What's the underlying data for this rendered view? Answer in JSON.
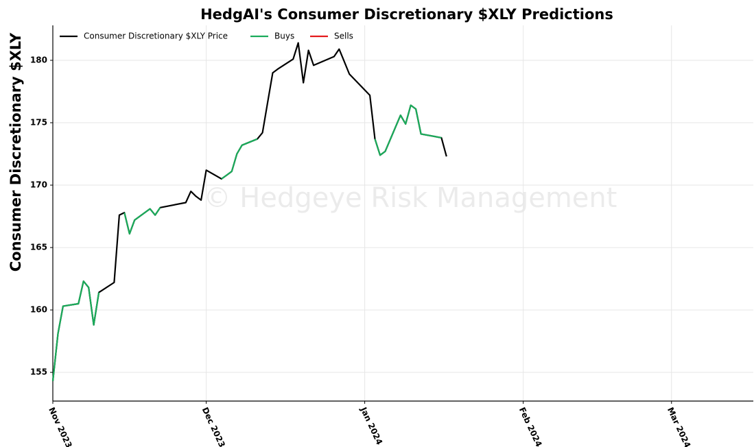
{
  "chart_data": {
    "type": "line",
    "title": "HedgAI's Consumer Discretionary $XLY Predictions",
    "ylabel": "Consumer Discretionary $XLY",
    "watermark": "© Hedgeye Risk Management",
    "x": [
      "2023-11-01",
      "2023-11-02",
      "2023-11-03",
      "2023-11-06",
      "2023-11-07",
      "2023-11-08",
      "2023-11-09",
      "2023-11-10",
      "2023-11-13",
      "2023-11-14",
      "2023-11-15",
      "2023-11-16",
      "2023-11-17",
      "2023-11-20",
      "2023-11-21",
      "2023-11-22",
      "2023-11-27",
      "2023-11-28",
      "2023-11-29",
      "2023-11-30",
      "2023-12-01",
      "2023-12-04",
      "2023-12-05",
      "2023-12-06",
      "2023-12-07",
      "2023-12-08",
      "2023-12-11",
      "2023-12-12",
      "2023-12-13",
      "2023-12-14",
      "2023-12-15",
      "2023-12-18",
      "2023-12-19",
      "2023-12-20",
      "2023-12-21",
      "2023-12-22",
      "2023-12-26",
      "2023-12-27",
      "2023-12-28",
      "2023-12-29",
      "2024-01-02",
      "2024-01-03",
      "2024-01-04",
      "2024-01-05",
      "2024-01-08",
      "2024-01-09",
      "2024-01-10",
      "2024-01-11",
      "2024-01-12",
      "2024-01-16",
      "2024-01-17"
    ],
    "series": [
      {
        "name": "Consumer Discretionary $XLY Price",
        "color": "#000000",
        "values": [
          154.3,
          158.1,
          160.3,
          160.5,
          162.3,
          161.8,
          158.8,
          161.4,
          162.2,
          167.6,
          167.8,
          166.1,
          167.2,
          168.1,
          167.6,
          168.2,
          168.6,
          169.5,
          169.1,
          168.8,
          171.2,
          170.5,
          170.8,
          171.1,
          172.5,
          173.2,
          173.7,
          174.2,
          176.6,
          179.0,
          179.3,
          180.1,
          181.4,
          178.2,
          180.8,
          179.6,
          180.3,
          180.9,
          179.9,
          178.9,
          177.2,
          173.7,
          172.4,
          172.7,
          175.6,
          174.9,
          176.4,
          176.1,
          174.1,
          173.8,
          172.3
        ]
      },
      {
        "name": "Buys",
        "color": "#1aab5a",
        "values": [
          154.3,
          158.1,
          160.3,
          160.5,
          162.3,
          161.8,
          158.8,
          161.4,
          null,
          null,
          167.8,
          166.1,
          167.2,
          168.1,
          167.6,
          168.2,
          null,
          null,
          null,
          null,
          null,
          170.5,
          170.8,
          171.1,
          172.5,
          173.2,
          173.7,
          null,
          null,
          null,
          null,
          null,
          null,
          null,
          null,
          null,
          null,
          null,
          null,
          null,
          null,
          173.7,
          172.4,
          172.7,
          175.6,
          174.9,
          176.4,
          176.1,
          174.1,
          173.8,
          null
        ]
      },
      {
        "name": "Sells",
        "color": "#e41a1c",
        "values": [
          null,
          null,
          null,
          null,
          null,
          null,
          null,
          null,
          null,
          null,
          null,
          null,
          null,
          null,
          null,
          null,
          null,
          null,
          null,
          null,
          null,
          null,
          null,
          null,
          null,
          null,
          null,
          null,
          null,
          null,
          null,
          null,
          null,
          null,
          null,
          null,
          null,
          null,
          null,
          null,
          null,
          null,
          null,
          null,
          null,
          null,
          null,
          null,
          null,
          null,
          null
        ]
      }
    ],
    "xlim": [
      "2023-11-01",
      "2024-03-17"
    ],
    "xticks": [
      {
        "value": "2023-11-01",
        "label": "Nov 2023"
      },
      {
        "value": "2023-12-01",
        "label": "Dec 2023"
      },
      {
        "value": "2024-01-01",
        "label": "Jan 2024"
      },
      {
        "value": "2024-02-01",
        "label": "Feb 2024"
      },
      {
        "value": "2024-03-01",
        "label": "Mar 2024"
      }
    ],
    "ylim": [
      152.7,
      182.8
    ],
    "yticks": [
      155,
      160,
      165,
      170,
      175,
      180
    ],
    "grid": true,
    "legend": "upper left"
  }
}
